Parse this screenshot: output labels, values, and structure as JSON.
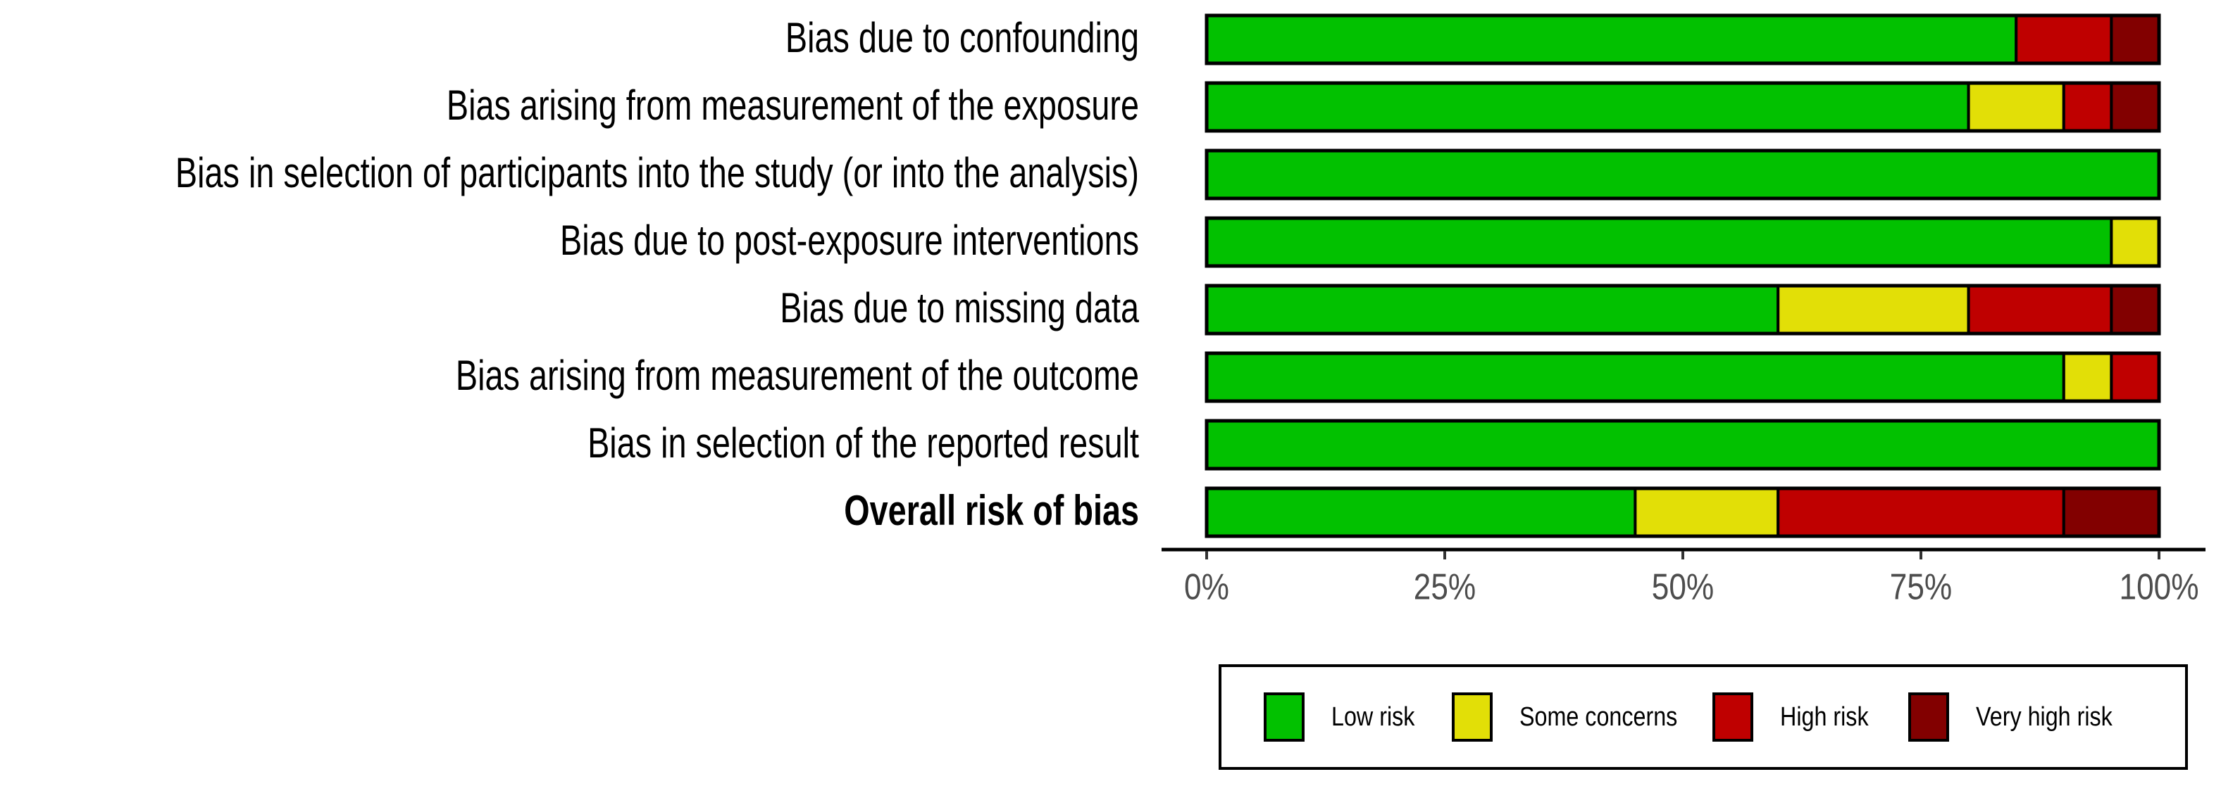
{
  "chart_data": {
    "type": "stacked-bar-horizontal",
    "categories": [
      "Bias due to confounding",
      "Bias arising from measurement of the exposure",
      "Bias in selection of participants into the study (or into the analysis)",
      "Bias due to post-exposure interventions",
      "Bias due to missing data",
      "Bias arising from measurement of the outcome",
      "Bias in selection of the reported result",
      "Overall risk of bias"
    ],
    "series": [
      {
        "name": "Low risk",
        "color": "#02c100",
        "values": [
          85,
          80,
          100,
          95,
          60,
          90,
          100,
          45
        ]
      },
      {
        "name": "Some concerns",
        "color": "#e2df07",
        "values": [
          0,
          10,
          0,
          5,
          20,
          5,
          0,
          15
        ]
      },
      {
        "name": "High risk",
        "color": "#bf0000",
        "values": [
          10,
          5,
          0,
          0,
          15,
          5,
          0,
          30
        ]
      },
      {
        "name": "Very high risk",
        "color": "#820000",
        "values": [
          5,
          5,
          0,
          0,
          5,
          0,
          0,
          10
        ]
      }
    ],
    "xlim": [
      0,
      100
    ],
    "xticks": [
      {
        "value": 0,
        "label": "0%"
      },
      {
        "value": 25,
        "label": "25%"
      },
      {
        "value": 50,
        "label": "50%"
      },
      {
        "value": 75,
        "label": "75%"
      },
      {
        "value": 100,
        "label": "100%"
      }
    ],
    "legend_position": "bottom"
  }
}
